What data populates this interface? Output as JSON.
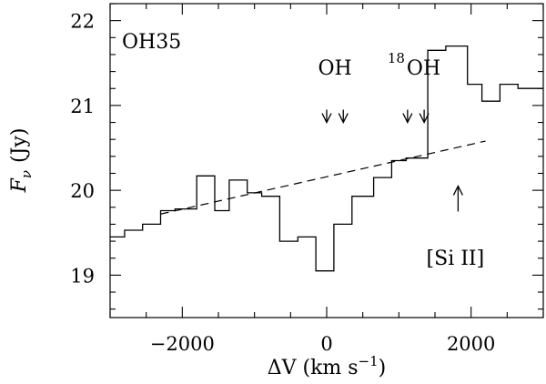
{
  "chart_data": {
    "type": "line",
    "line_style": "step",
    "panel_label": "OH35",
    "xlabel": {
      "main": "ΔV (km s",
      "exponent": "−1",
      "close": ")"
    },
    "ylabel": {
      "symbol": "F",
      "subscript": "ν",
      "unit": "(Jy)"
    },
    "xlim": [
      -3000,
      3000
    ],
    "ylim": [
      18.5,
      22.2
    ],
    "xticks": {
      "major": [
        -2000,
        0,
        2000
      ],
      "minor_step": 500,
      "labels": [
        "−2000",
        "0",
        "2000"
      ]
    },
    "yticks": {
      "major": [
        19,
        20,
        21,
        22
      ],
      "minor_step": 0.2,
      "labels": [
        "19",
        "20",
        "21",
        "22"
      ]
    },
    "grid": false,
    "series": [
      {
        "style": "step",
        "bin_edges": [
          -3000,
          -2800,
          -2550,
          -2300,
          -2100,
          -1800,
          -1550,
          -1350,
          -1100,
          -900,
          -650,
          -400,
          -150,
          100,
          350,
          650,
          900,
          1100,
          1400,
          1650,
          1950,
          2150,
          2400,
          2650,
          3000
        ],
        "values": [
          19.45,
          19.53,
          19.6,
          19.76,
          19.78,
          20.17,
          19.76,
          20.12,
          19.97,
          19.93,
          19.4,
          19.45,
          19.05,
          19.6,
          19.93,
          20.15,
          20.35,
          20.38,
          21.65,
          21.7,
          21.25,
          21.05,
          21.25,
          21.2
        ]
      },
      {
        "style": "dashed",
        "x": [
          -2300,
          2200
        ],
        "y": [
          19.72,
          20.58
        ]
      }
    ],
    "annotations": [
      {
        "kind": "emission-arrows",
        "label": "OH",
        "arrows_x": [
          0,
          230
        ],
        "arrow_y": [
          20.95,
          20.8
        ]
      },
      {
        "kind": "emission-arrows",
        "label": "OH",
        "label_prefix_sup": "18",
        "arrows_x": [
          1120,
          1350
        ],
        "arrow_y": [
          20.95,
          20.8
        ]
      },
      {
        "kind": "line-marker",
        "label": "[Si II]",
        "arrow_x": 1820,
        "arrow_y": [
          19.75,
          20.05
        ]
      }
    ]
  }
}
